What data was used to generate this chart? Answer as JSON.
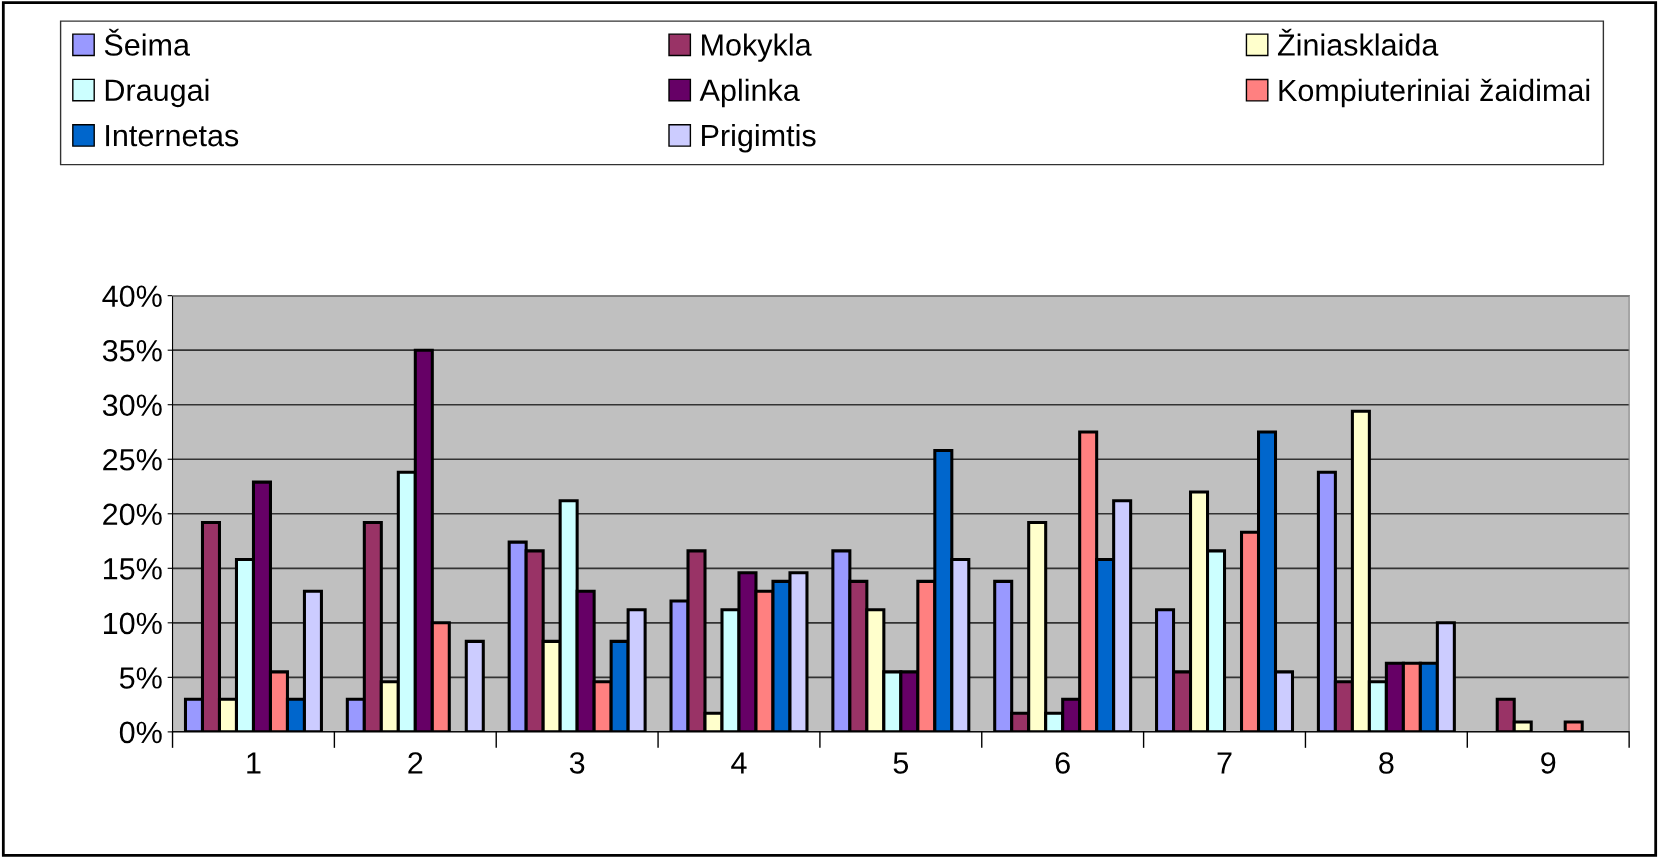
{
  "chart_data": {
    "type": "bar",
    "categories": [
      "1",
      "2",
      "3",
      "4",
      "5",
      "6",
      "7",
      "8",
      "9"
    ],
    "series": [
      {
        "name": "Šeima",
        "color": "#9999ff",
        "values": [
          3,
          3,
          17.4,
          12,
          16.6,
          13.8,
          11.2,
          23.8,
          null
        ]
      },
      {
        "name": "Mokykla",
        "color": "#993366",
        "values": [
          19.2,
          19.2,
          16.6,
          16.6,
          13.8,
          1.7,
          5.5,
          4.6,
          3
        ]
      },
      {
        "name": "Žiniasklaida",
        "color": "#ffffcc",
        "values": [
          3,
          4.6,
          8.3,
          1.7,
          11.2,
          19.2,
          22,
          29.4,
          0.9
        ]
      },
      {
        "name": "Draugai",
        "color": "#ccffff",
        "values": [
          15.8,
          23.8,
          21.2,
          11.2,
          5.5,
          1.7,
          16.6,
          4.6,
          null
        ]
      },
      {
        "name": "Aplinka",
        "color": "#660066",
        "values": [
          22.9,
          35,
          12.9,
          14.6,
          5.5,
          3,
          null,
          6.3,
          null
        ]
      },
      {
        "name": "Kompiuteriniai žaidimai",
        "color": "#ff8080",
        "values": [
          5.5,
          10,
          4.6,
          12.9,
          13.8,
          27.5,
          18.3,
          6.3,
          0.9
        ]
      },
      {
        "name": "Internetas",
        "color": "#0066cc",
        "values": [
          3,
          null,
          8.3,
          13.8,
          25.8,
          15.8,
          27.5,
          6.3,
          null
        ]
      },
      {
        "name": "Prigimtis",
        "color": "#ccccff",
        "values": [
          12.9,
          8.3,
          11.2,
          14.6,
          15.8,
          21.2,
          5.5,
          10,
          null
        ]
      }
    ],
    "ylim": [
      0,
      40
    ],
    "yticks": [
      {
        "value": 0,
        "label": "0%"
      },
      {
        "value": 5,
        "label": "5%"
      },
      {
        "value": 10,
        "label": "10%"
      },
      {
        "value": 15,
        "label": "15%"
      },
      {
        "value": 20,
        "label": "20%"
      },
      {
        "value": 25,
        "label": "25%"
      },
      {
        "value": 30,
        "label": "30%"
      },
      {
        "value": 35,
        "label": "35%"
      },
      {
        "value": 40,
        "label": "40%"
      }
    ],
    "grid": "y",
    "legend": "top"
  }
}
